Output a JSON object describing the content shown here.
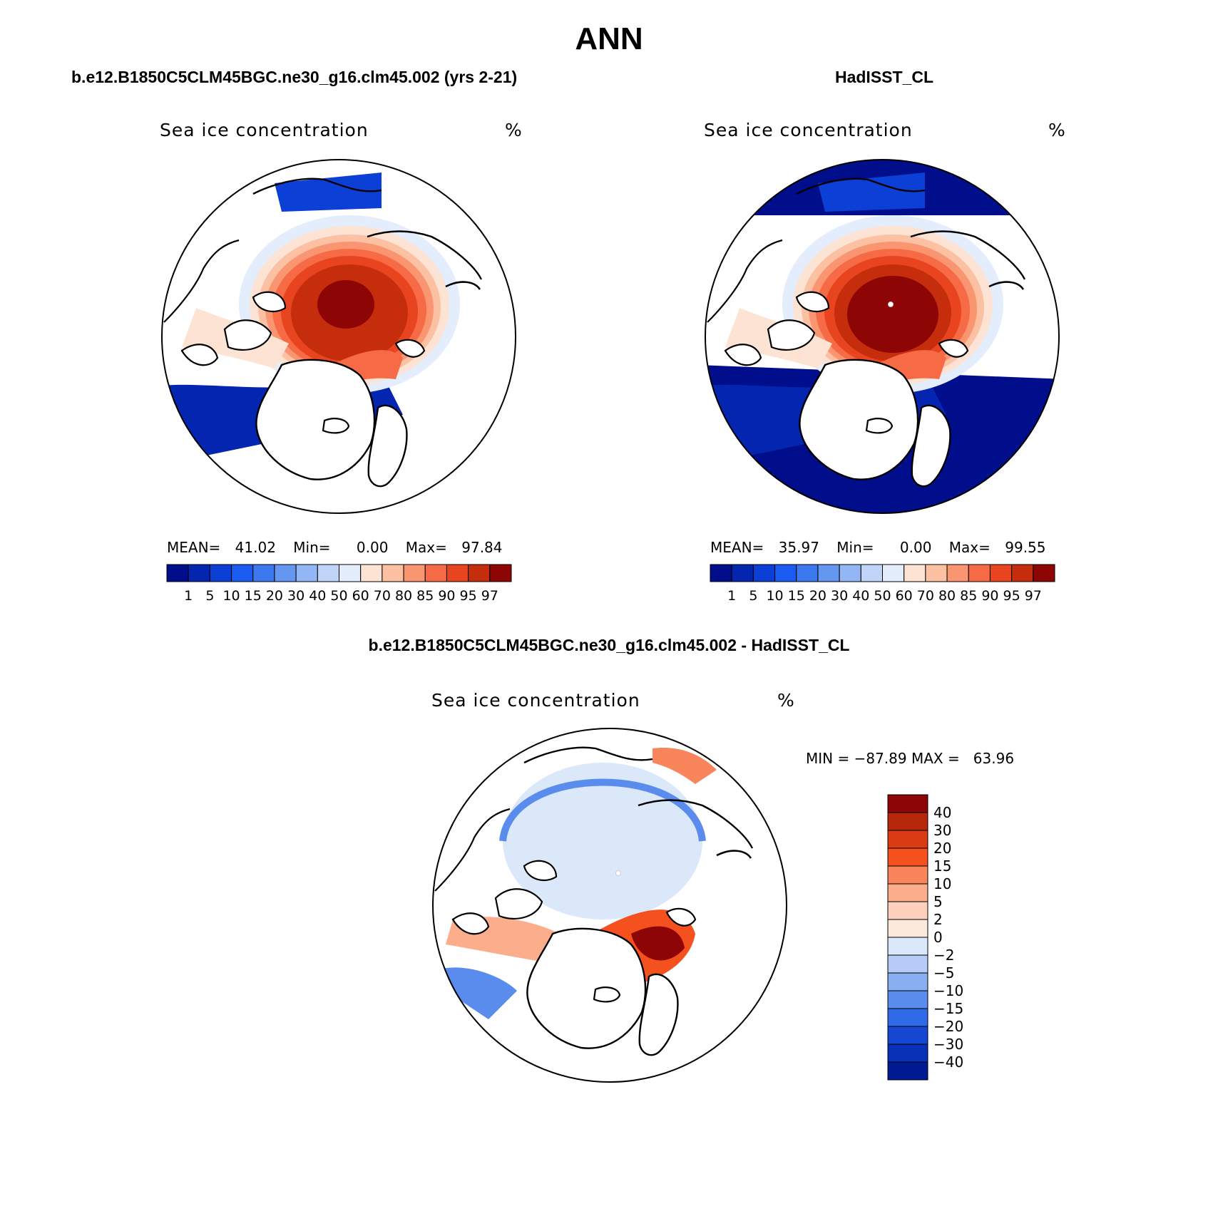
{
  "title": "ANN",
  "panels": [
    {
      "id": "model",
      "heading": "b.e12.B1850C5CLM45BGC.ne30_g16.clm45.002 (yrs 2-21)",
      "field_label": "Sea ice concentration",
      "units": "%",
      "stats": {
        "mean_label": "MEAN=",
        "mean": "41.02",
        "min_label": "Min=",
        "min": "0.00",
        "max_label": "Max=",
        "max": "97.84"
      }
    },
    {
      "id": "obs",
      "heading": "HadISST_CL",
      "field_label": "Sea ice concentration",
      "units": "%",
      "stats": {
        "mean_label": "MEAN=",
        "mean": "35.97",
        "min_label": "Min=",
        "min": "0.00",
        "max_label": "Max=",
        "max": "99.55"
      }
    },
    {
      "id": "diff",
      "heading": "b.e12.B1850C5CLM45BGC.ne30_g16.clm45.002 - HadISST_CL",
      "field_label": "Sea ice concentration",
      "units": "%",
      "stats_text": "MIN = −87.89 MAX =   63.96"
    }
  ],
  "colorbar_abs": {
    "labels": [
      "1",
      "5",
      "10",
      "15",
      "20",
      "30",
      "40",
      "50",
      "60",
      "70",
      "80",
      "85",
      "90",
      "95",
      "97"
    ],
    "colors": [
      "#000e8c",
      "#0425b0",
      "#0b3fd6",
      "#1a5cf2",
      "#3c78ee",
      "#6597f0",
      "#93b7f4",
      "#c0d4f8",
      "#e3edfb",
      "#fde3d3",
      "#fcc0a2",
      "#f99671",
      "#f66a45",
      "#e8441f",
      "#c52d0d",
      "#8e0505"
    ]
  },
  "colorbar_diff": {
    "labels": [
      "40",
      "30",
      "20",
      "15",
      "10",
      "5",
      "2",
      "0",
      "−2",
      "−5",
      "−10",
      "−15",
      "−20",
      "−30",
      "−40"
    ],
    "colors": [
      "#8e0505",
      "#b7270b",
      "#d93b13",
      "#f5511e",
      "#f8855c",
      "#fbad8c",
      "#fcd0bb",
      "#fde9dc",
      "#dbe8fa",
      "#b6ccf6",
      "#8aaef2",
      "#5a8ced",
      "#2f6be8",
      "#1547d3",
      "#0831b8",
      "#001a93"
    ]
  }
}
